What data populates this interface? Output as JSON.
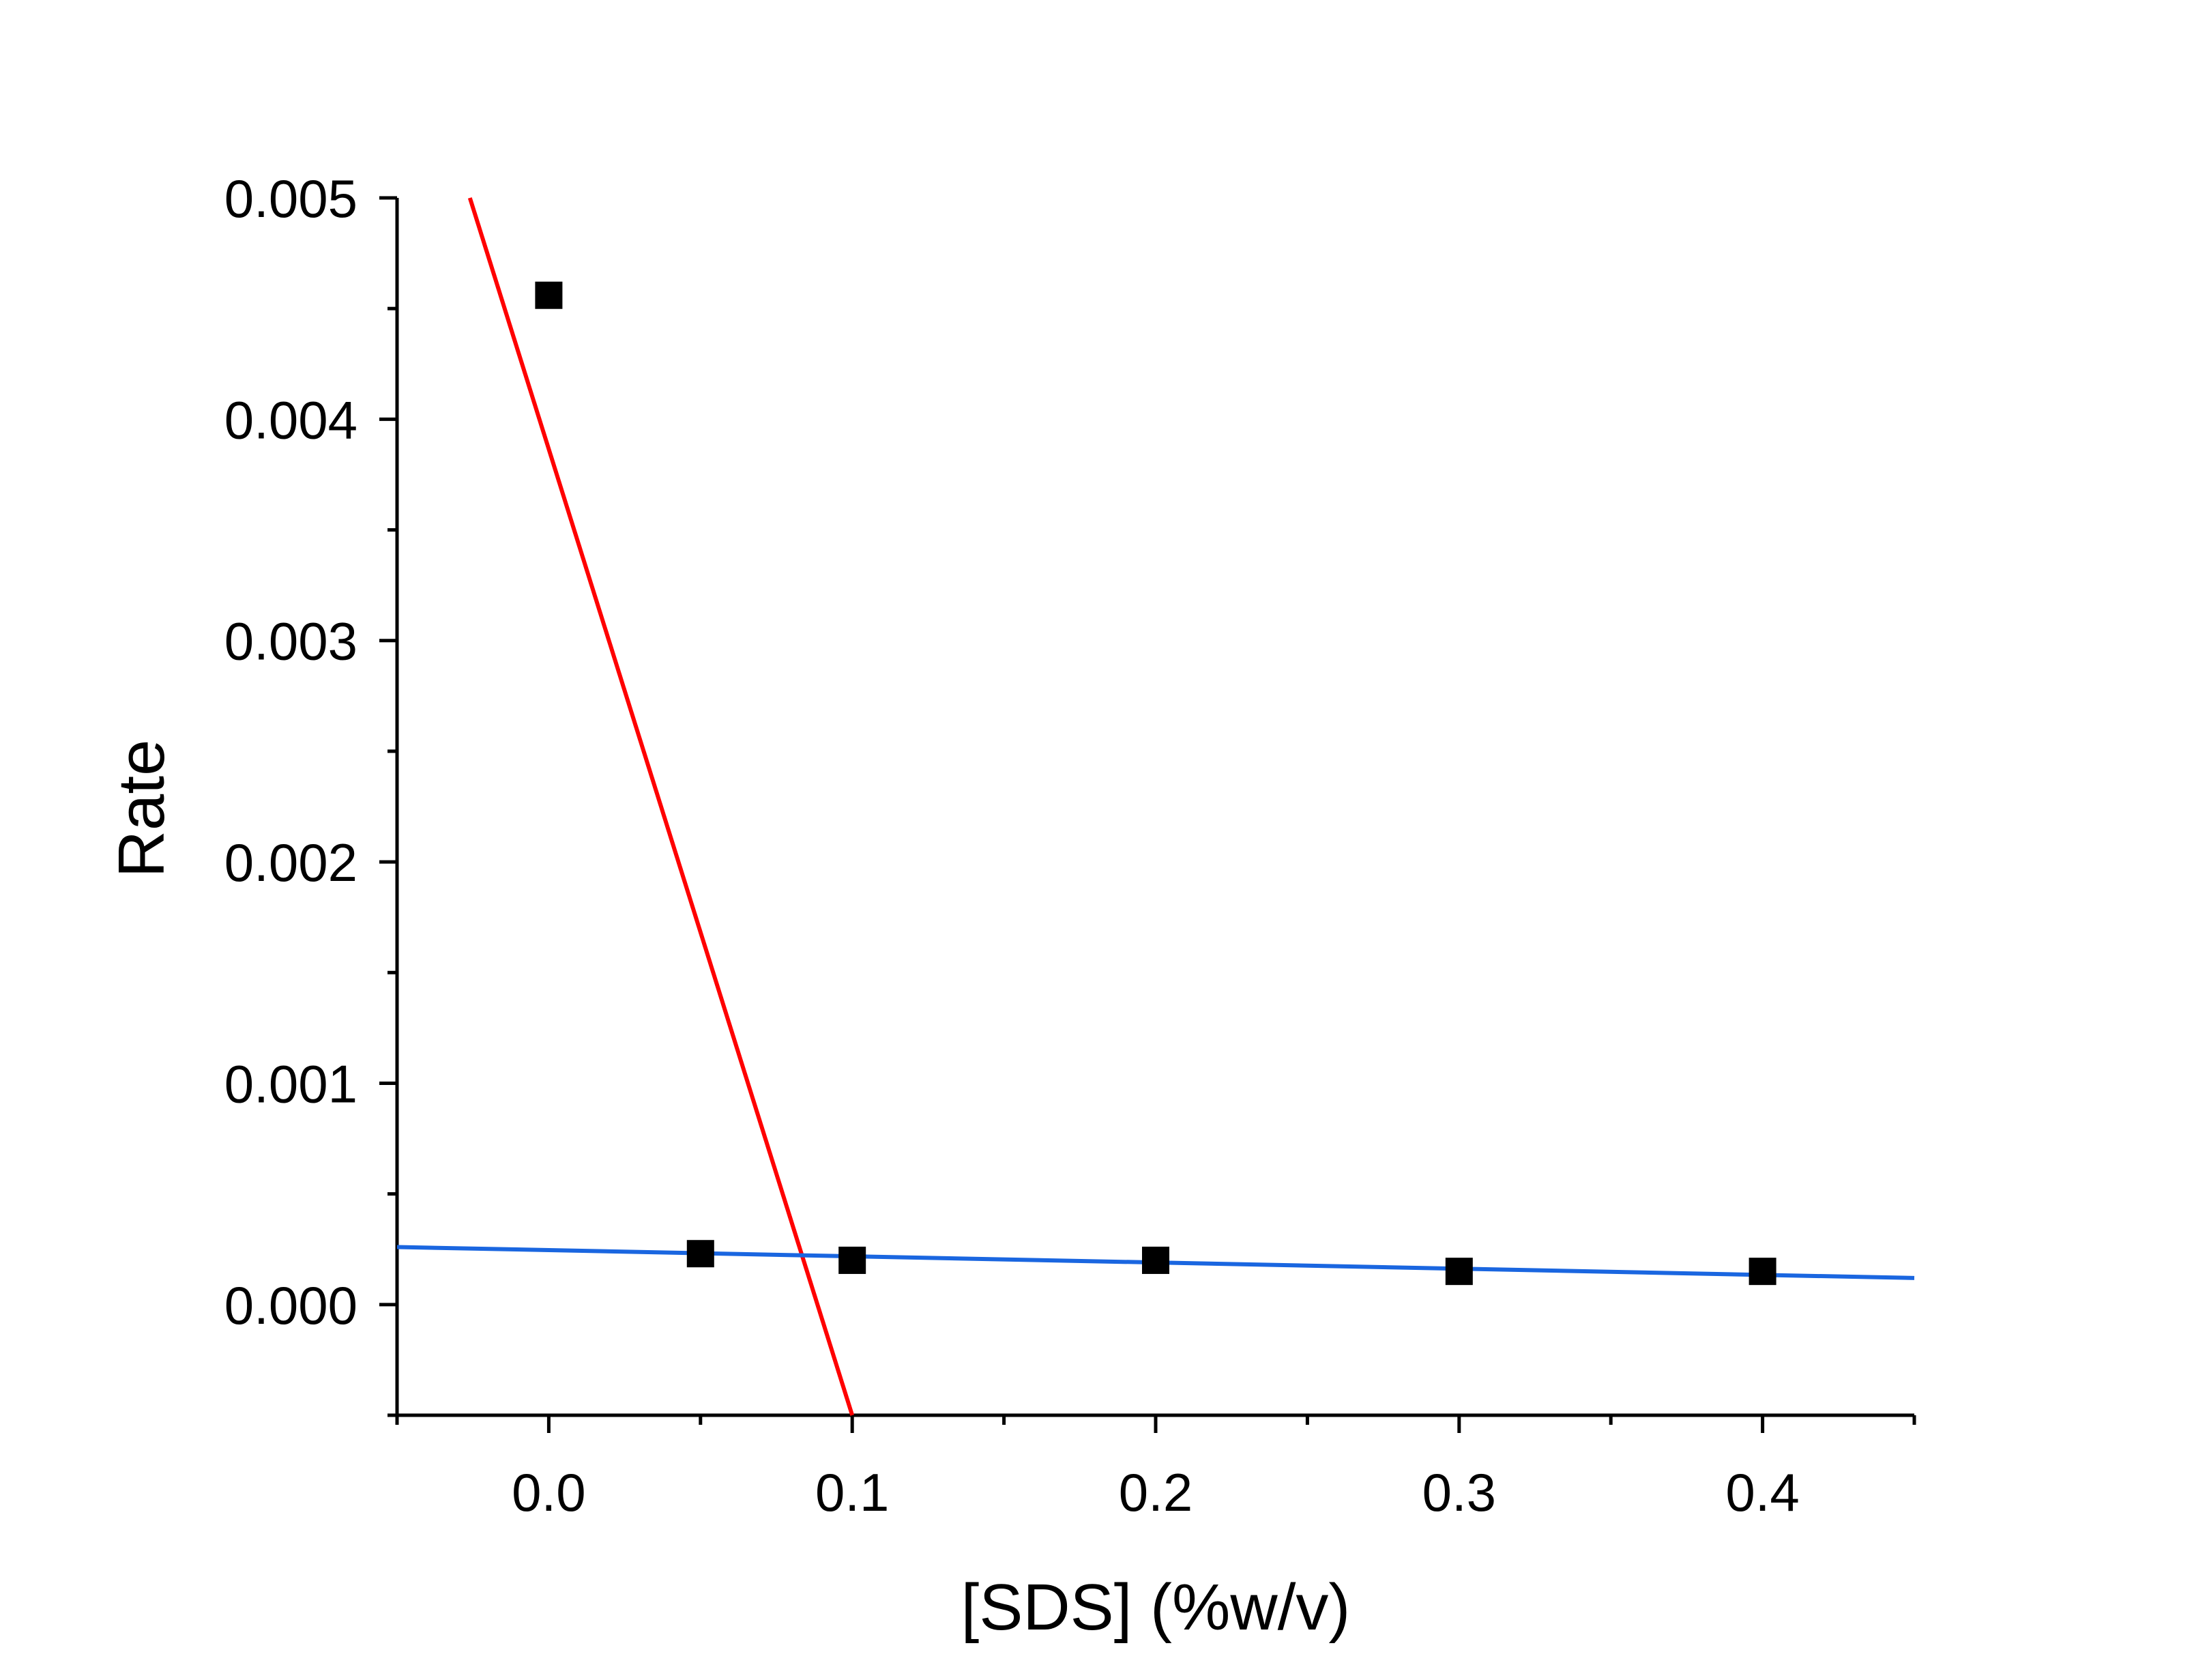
{
  "chart_data": {
    "type": "scatter",
    "title": "",
    "xlabel": "[SDS] (%w/v)",
    "ylabel": "Rate",
    "xlim": [
      -0.05,
      0.45
    ],
    "ylim": [
      -0.0005,
      0.005
    ],
    "x_ticks": [
      "0.0",
      "0.1",
      "0.2",
      "0.3",
      "0.4"
    ],
    "x_tick_values": [
      0.0,
      0.1,
      0.2,
      0.3,
      0.4
    ],
    "y_ticks": [
      "0.000",
      "0.001",
      "0.002",
      "0.003",
      "0.004",
      "0.005"
    ],
    "y_tick_values": [
      0.0,
      0.001,
      0.002,
      0.003,
      0.004,
      0.005
    ],
    "grid": false,
    "series": [
      {
        "marker": "square",
        "color": "#000000",
        "x": [
          0.0,
          0.05,
          0.1,
          0.2,
          0.3,
          0.4
        ],
        "y": [
          0.00456,
          0.00023,
          0.0002,
          0.0002,
          0.00015,
          0.00015
        ]
      }
    ],
    "fit_lines": [
      {
        "color": "#ff0000",
        "x": [
          -0.026,
          0.1
        ],
        "y": [
          0.005,
          -0.0005
        ]
      },
      {
        "color": "#1a66e0",
        "x": [
          -0.05,
          0.45
        ],
        "y": [
          0.00026,
          0.00012
        ]
      }
    ]
  }
}
